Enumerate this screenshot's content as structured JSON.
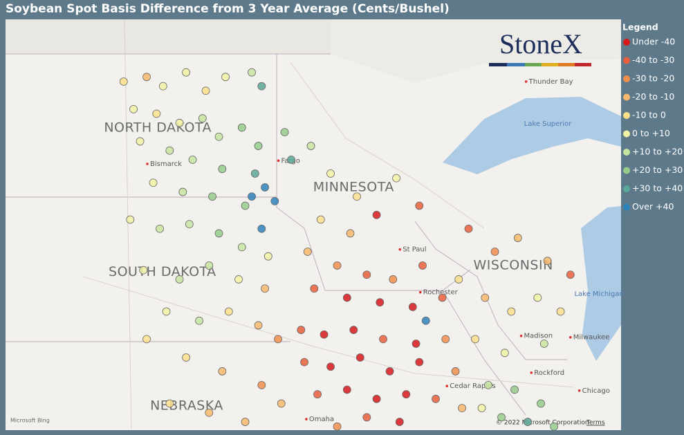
{
  "chart_data": {
    "type": "map",
    "title": "Soybean Spot Basis Difference from 3 Year Average (Cents/Bushel)",
    "legend_title": "Legend",
    "series": [
      {
        "name": "Under -40",
        "color": "#d7191c"
      },
      {
        "name": "-40 to -30",
        "color": "#e8603c"
      },
      {
        "name": "-30 to -20",
        "color": "#f08f4e"
      },
      {
        "name": "-20 to -10",
        "color": "#f7b96c"
      },
      {
        "name": "-10 to 0",
        "color": "#fbe08c"
      },
      {
        "name": "0 to +10",
        "color": "#f1f2a6"
      },
      {
        "name": "+10 to +20",
        "color": "#c6e5a0"
      },
      {
        "name": "+20 to +30",
        "color": "#94cc8c"
      },
      {
        "name": "+30 to +40",
        "color": "#5aa898"
      },
      {
        "name": "Over +40",
        "color": "#2b83ba"
      }
    ],
    "points": [
      [
        -101.5,
        48.6,
        4
      ],
      [
        -100.8,
        48.7,
        3
      ],
      [
        -100.3,
        48.5,
        5
      ],
      [
        -99.6,
        48.8,
        5
      ],
      [
        -99.0,
        48.4,
        4
      ],
      [
        -98.4,
        48.7,
        5
      ],
      [
        -97.6,
        48.8,
        6
      ],
      [
        -97.3,
        48.5,
        8
      ],
      [
        -101.2,
        48.0,
        5
      ],
      [
        -100.5,
        47.9,
        4
      ],
      [
        -99.8,
        47.7,
        5
      ],
      [
        -99.1,
        47.8,
        6
      ],
      [
        -98.6,
        47.4,
        6
      ],
      [
        -97.9,
        47.6,
        7
      ],
      [
        -97.4,
        47.2,
        7
      ],
      [
        -101.0,
        47.3,
        5
      ],
      [
        -100.1,
        47.1,
        6
      ],
      [
        -99.4,
        46.9,
        6
      ],
      [
        -98.5,
        46.7,
        7
      ],
      [
        -97.5,
        46.6,
        8
      ],
      [
        -97.2,
        46.3,
        9
      ],
      [
        -96.9,
        46.0,
        9
      ],
      [
        -100.6,
        46.4,
        5
      ],
      [
        -99.7,
        46.2,
        6
      ],
      [
        -98.8,
        46.1,
        7
      ],
      [
        -97.8,
        45.9,
        7
      ],
      [
        -96.6,
        47.5,
        7
      ],
      [
        -96.4,
        46.9,
        8
      ],
      [
        -97.6,
        46.1,
        9
      ],
      [
        -97.3,
        45.4,
        9
      ],
      [
        -101.3,
        45.6,
        5
      ],
      [
        -100.4,
        45.4,
        6
      ],
      [
        -99.5,
        45.5,
        6
      ],
      [
        -98.6,
        45.3,
        7
      ],
      [
        -97.9,
        45.0,
        6
      ],
      [
        -97.1,
        44.8,
        5
      ],
      [
        -100.9,
        44.5,
        5
      ],
      [
        -99.8,
        44.3,
        6
      ],
      [
        -98.9,
        44.6,
        6
      ],
      [
        -98.0,
        44.3,
        5
      ],
      [
        -97.2,
        44.1,
        3
      ],
      [
        -99.2,
        43.4,
        6
      ],
      [
        -98.3,
        43.6,
        4
      ],
      [
        -97.4,
        43.3,
        3
      ],
      [
        -96.8,
        43.0,
        2
      ],
      [
        -100.2,
        43.6,
        5
      ],
      [
        -95.8,
        47.2,
        6
      ],
      [
        -95.2,
        46.6,
        5
      ],
      [
        -94.4,
        46.1,
        4
      ],
      [
        -93.2,
        46.5,
        5
      ],
      [
        -95.5,
        45.6,
        4
      ],
      [
        -94.6,
        45.3,
        3
      ],
      [
        -93.8,
        45.7,
        0
      ],
      [
        -92.5,
        45.9,
        1
      ],
      [
        -95.9,
        44.9,
        3
      ],
      [
        -95.0,
        44.6,
        2
      ],
      [
        -94.1,
        44.4,
        1
      ],
      [
        -93.3,
        44.3,
        2
      ],
      [
        -92.4,
        44.6,
        1
      ],
      [
        -95.7,
        44.1,
        1
      ],
      [
        -94.7,
        43.9,
        0
      ],
      [
        -93.7,
        43.8,
        0
      ],
      [
        -92.7,
        43.7,
        0
      ],
      [
        -91.8,
        43.9,
        1
      ],
      [
        -96.1,
        43.2,
        1
      ],
      [
        -95.4,
        43.1,
        0
      ],
      [
        -94.5,
        43.2,
        0
      ],
      [
        -93.6,
        43.0,
        1
      ],
      [
        -92.6,
        42.9,
        0
      ],
      [
        -91.7,
        43.0,
        2
      ],
      [
        -96.0,
        42.5,
        1
      ],
      [
        -95.2,
        42.4,
        0
      ],
      [
        -94.3,
        42.6,
        0
      ],
      [
        -93.4,
        42.3,
        0
      ],
      [
        -92.5,
        42.5,
        0
      ],
      [
        -91.4,
        42.3,
        2
      ],
      [
        -95.6,
        41.8,
        1
      ],
      [
        -94.7,
        41.9,
        0
      ],
      [
        -93.8,
        41.7,
        0
      ],
      [
        -92.9,
        41.8,
        0
      ],
      [
        -92.0,
        41.7,
        1
      ],
      [
        -91.2,
        41.5,
        3
      ],
      [
        -94.1,
        41.3,
        1
      ],
      [
        -93.1,
        41.2,
        0
      ],
      [
        -95.0,
        41.1,
        2
      ],
      [
        -92.3,
        43.4,
        9
      ],
      [
        -100.8,
        43.0,
        4
      ],
      [
        -99.6,
        42.6,
        4
      ],
      [
        -98.5,
        42.3,
        3
      ],
      [
        -97.3,
        42.0,
        2
      ],
      [
        -96.7,
        41.6,
        3
      ],
      [
        -100.1,
        41.6,
        4
      ],
      [
        -98.9,
        41.4,
        3
      ],
      [
        -97.8,
        41.2,
        3
      ],
      [
        -91.0,
        45.4,
        1
      ],
      [
        -90.2,
        44.9,
        2
      ],
      [
        -89.5,
        45.2,
        3
      ],
      [
        -88.6,
        44.7,
        3
      ],
      [
        -87.9,
        44.4,
        1
      ],
      [
        -91.3,
        44.3,
        4
      ],
      [
        -90.5,
        43.9,
        3
      ],
      [
        -89.7,
        43.6,
        4
      ],
      [
        -88.9,
        43.9,
        5
      ],
      [
        -88.2,
        43.6,
        4
      ],
      [
        -90.8,
        43.0,
        4
      ],
      [
        -89.9,
        42.7,
        5
      ],
      [
        -88.7,
        42.9,
        6
      ],
      [
        -90.4,
        42.0,
        6
      ],
      [
        -89.6,
        41.9,
        7
      ],
      [
        -88.8,
        41.6,
        7
      ],
      [
        -90.0,
        41.3,
        7
      ],
      [
        -89.2,
        41.2,
        8
      ],
      [
        -88.4,
        41.1,
        7
      ],
      [
        -90.6,
        41.5,
        5
      ]
    ],
    "labels": [
      {
        "text": "NORTH DAKOTA",
        "lon": -100.46,
        "lat": 47.59,
        "kind": "state"
      },
      {
        "text": "SOUTH DAKOTA",
        "lon": -100.32,
        "lat": 44.46,
        "kind": "state"
      },
      {
        "text": "MINNESOTA",
        "lon": -94.5,
        "lat": 46.3,
        "kind": "state"
      },
      {
        "text": "WISCONSIN",
        "lon": -89.64,
        "lat": 44.6,
        "kind": "state"
      },
      {
        "text": "NEBRASKA",
        "lon": -99.58,
        "lat": 41.55,
        "kind": "state"
      },
      {
        "text": "Bismarck",
        "lon": -100.78,
        "lat": 46.81,
        "kind": "city"
      },
      {
        "text": "Fargo",
        "lon": -96.79,
        "lat": 46.88,
        "kind": "city"
      },
      {
        "text": "St Paul",
        "lon": -93.09,
        "lat": 44.95,
        "kind": "city"
      },
      {
        "text": "Rochester",
        "lon": -92.47,
        "lat": 44.02,
        "kind": "city"
      },
      {
        "text": "Thunder Bay",
        "lon": -89.25,
        "lat": 48.6,
        "kind": "city"
      },
      {
        "text": "Lake Superior",
        "lon": -88.59,
        "lat": 47.68,
        "kind": "lake"
      },
      {
        "text": "Lake Michigan",
        "lon": -87.03,
        "lat": 43.98,
        "kind": "lake"
      },
      {
        "text": "Madison",
        "lon": -89.4,
        "lat": 43.07,
        "kind": "city"
      },
      {
        "text": "Milwaukee",
        "lon": -87.9,
        "lat": 43.04,
        "kind": "city"
      },
      {
        "text": "Rockford",
        "lon": -89.09,
        "lat": 42.27,
        "kind": "city"
      },
      {
        "text": "Cedar Rapids",
        "lon": -91.66,
        "lat": 41.98,
        "kind": "city"
      },
      {
        "text": "Chicago",
        "lon": -87.63,
        "lat": 41.88,
        "kind": "city"
      },
      {
        "text": "Omaha",
        "lon": -95.94,
        "lat": 41.26,
        "kind": "city"
      }
    ]
  },
  "attribution": {
    "brand": "StoneX",
    "bing": "Microsoft Bing",
    "copyright": "© 2022 Microsoft Corporation",
    "terms": "Terms"
  }
}
